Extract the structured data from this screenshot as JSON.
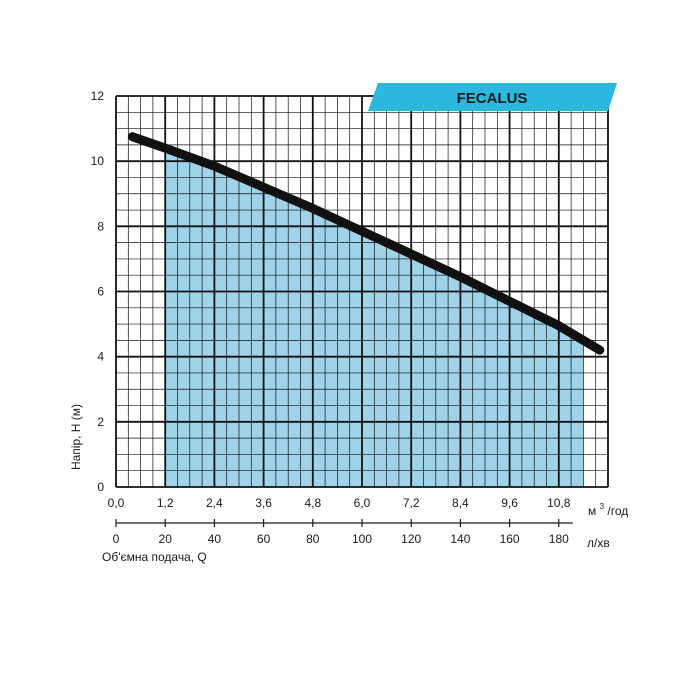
{
  "chart_data": {
    "type": "line",
    "brand_label": "FECALUS",
    "ylabel": "Напір, H (м)",
    "x_unit_primary": "м³/год",
    "x_unit_primary_base": "м",
    "x_unit_primary_sup": "3",
    "x_unit_primary_tail": "/год",
    "x_unit_secondary": "л/хв",
    "xlabel_secondary": "Об'ємна подача, Q",
    "xlim": [
      0,
      12
    ],
    "ylim": [
      0,
      12
    ],
    "grid": true,
    "x_ticks": [
      "0,0",
      "1,2",
      "2,4",
      "3,6",
      "4,8",
      "6,0",
      "7,2",
      "8,4",
      "9,6",
      "10,8"
    ],
    "x_tick_values": [
      0,
      1.2,
      2.4,
      3.6,
      4.8,
      6.0,
      7.2,
      8.4,
      9.6,
      10.8
    ],
    "x2_ticks": [
      "0",
      "20",
      "40",
      "60",
      "80",
      "100",
      "120",
      "140",
      "160",
      "180"
    ],
    "x2_tick_values": [
      0,
      20,
      40,
      60,
      80,
      100,
      120,
      140,
      160,
      180
    ],
    "y_ticks": [
      "0",
      "2",
      "4",
      "6",
      "8",
      "10",
      "12"
    ],
    "y_tick_values": [
      0,
      2,
      4,
      6,
      8,
      10,
      12
    ],
    "operating_range": [
      1.2,
      11.4
    ],
    "series": [
      {
        "x": [
          0.4,
          1.2,
          2.4,
          3.6,
          4.8,
          6.0,
          7.2,
          8.4,
          9.6,
          10.8,
          11.8
        ],
        "y": [
          10.75,
          10.4,
          9.85,
          9.2,
          8.55,
          7.85,
          7.15,
          6.45,
          5.7,
          4.95,
          4.2
        ]
      }
    ],
    "colors": {
      "fill": "#9fd3ea",
      "curve": "#111111",
      "grid": "#111111",
      "banner": "#2bb8dc"
    }
  }
}
